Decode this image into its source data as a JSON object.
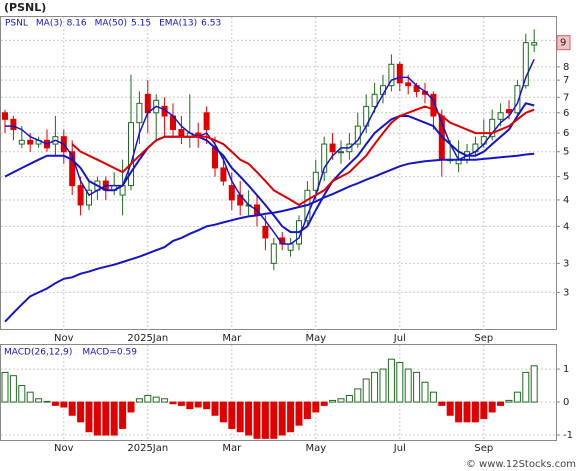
{
  "chart_data": [
    {
      "type": "candlestick",
      "title": "(PSNL)",
      "symbol": "PSNL",
      "last_price_label": "9",
      "log_scale": true,
      "categories": [
        null,
        null,
        null,
        null,
        null,
        null,
        null,
        "Nov",
        null,
        null,
        null,
        null,
        null,
        null,
        null,
        null,
        null,
        "2025Jan",
        null,
        null,
        null,
        null,
        null,
        null,
        null,
        null,
        null,
        "Mar",
        null,
        null,
        null,
        null,
        null,
        null,
        null,
        null,
        null,
        "May",
        null,
        null,
        null,
        null,
        null,
        null,
        null,
        null,
        null,
        "Jul",
        null,
        null,
        null,
        null,
        null,
        null,
        null,
        null,
        null,
        "Sep",
        null,
        null,
        null,
        null,
        null,
        null
      ],
      "open": [
        6.3,
        6.1,
        5.4,
        5.5,
        5.4,
        5.5,
        5.4,
        5.6,
        5.2,
        4.4,
        4.0,
        4.3,
        4.5,
        4.3,
        4.2,
        4.4,
        6.0,
        6.9,
        6.3,
        6.5,
        6.2,
        5.8,
        5.6,
        5.7,
        6.3,
        5.3,
        4.8,
        4.4,
        4.2,
        4.0,
        4.0,
        3.6,
        3.0,
        3.4,
        3.2,
        3.3,
        3.7,
        4.3,
        4.7,
        5.4,
        5.2,
        5.2,
        5.4,
        5.9,
        6.5,
        6.9,
        7.2,
        8.0,
        7.3,
        7.2,
        7.0,
        6.9,
        6.2,
        5.0,
        4.9,
        5.0,
        5.2,
        5.4,
        5.6,
        6.1,
        6.4,
        6.3,
        7.2,
        8.8
      ],
      "high": [
        6.4,
        6.2,
        5.9,
        5.7,
        5.6,
        5.8,
        6.2,
        5.8,
        5.5,
        4.6,
        4.5,
        4.6,
        4.6,
        4.7,
        5.0,
        7.6,
        7.0,
        7.4,
        6.9,
        6.8,
        6.6,
        6.2,
        6.9,
        6.0,
        6.5,
        5.6,
        5.1,
        4.7,
        4.5,
        4.3,
        4.2,
        3.8,
        3.4,
        3.5,
        3.4,
        3.8,
        4.5,
        5.0,
        5.6,
        5.7,
        5.5,
        5.7,
        6.3,
        6.9,
        7.3,
        7.6,
        8.4,
        8.1,
        7.6,
        7.3,
        7.3,
        7.0,
        6.4,
        5.5,
        5.5,
        5.4,
        5.6,
        6.1,
        6.4,
        6.6,
        6.7,
        7.4,
        9.3,
        9.5
      ],
      "low": [
        5.7,
        5.5,
        5.3,
        5.2,
        5.3,
        5.2,
        5.1,
        4.9,
        4.2,
        3.8,
        3.9,
        4.1,
        4.1,
        4.2,
        3.8,
        4.3,
        5.4,
        5.7,
        5.5,
        5.6,
        5.6,
        5.4,
        5.3,
        5.3,
        5.4,
        4.6,
        4.4,
        3.9,
        3.8,
        3.8,
        3.6,
        3.2,
        2.9,
        3.2,
        3.1,
        3.2,
        3.6,
        4.1,
        4.5,
        5.0,
        4.9,
        5.0,
        5.3,
        5.7,
        6.3,
        6.6,
        7.0,
        7.0,
        6.9,
        6.8,
        6.6,
        5.8,
        4.6,
        4.9,
        4.7,
        4.9,
        5.1,
        5.3,
        5.5,
        5.9,
        6.1,
        6.2,
        7.1,
        8.5
      ],
      "close": [
        6.1,
        5.8,
        5.5,
        5.4,
        5.5,
        5.3,
        5.6,
        5.2,
        4.4,
        4.0,
        4.3,
        4.5,
        4.3,
        4.4,
        4.4,
        6.0,
        6.6,
        6.3,
        6.7,
        6.2,
        5.8,
        5.6,
        5.7,
        5.6,
        5.8,
        4.8,
        4.5,
        4.1,
        4.0,
        4.0,
        3.8,
        3.4,
        3.3,
        3.3,
        3.3,
        3.7,
        4.3,
        4.7,
        5.4,
        5.2,
        5.2,
        5.4,
        5.9,
        6.5,
        6.9,
        7.2,
        8.0,
        7.3,
        7.2,
        7.0,
        6.9,
        6.2,
        5.0,
        5.0,
        5.0,
        5.2,
        5.4,
        5.6,
        6.1,
        6.3,
        6.3,
        7.2,
        8.9,
        8.9
      ],
      "up_color": "#1f6b1f",
      "down_color": "#e00000",
      "series": [
        {
          "name": "MA(3)",
          "last": 8.16,
          "color": "#1515c8",
          "width": 1.5,
          "values": [
            5.9,
            5.9,
            5.8,
            5.6,
            5.5,
            5.4,
            5.5,
            5.4,
            5.1,
            4.5,
            4.2,
            4.3,
            4.4,
            4.4,
            4.4,
            4.9,
            5.7,
            6.3,
            6.5,
            6.4,
            6.2,
            5.9,
            5.7,
            5.6,
            5.7,
            5.4,
            5.0,
            4.5,
            4.2,
            4.0,
            3.9,
            3.7,
            3.5,
            3.3,
            3.3,
            3.4,
            3.8,
            4.2,
            4.8,
            5.1,
            5.3,
            5.3,
            5.5,
            5.9,
            6.4,
            6.9,
            7.4,
            7.5,
            7.5,
            7.2,
            7.0,
            6.7,
            6.0,
            5.4,
            5.0,
            5.1,
            5.2,
            5.4,
            5.7,
            6.0,
            6.2,
            6.6,
            7.5,
            8.2
          ]
        },
        {
          "name": "MA(50)",
          "last": 5.15,
          "color": "#1515c8",
          "width": 2,
          "values": [
            2.25,
            2.35,
            2.45,
            2.55,
            2.6,
            2.65,
            2.72,
            2.78,
            2.8,
            2.85,
            2.88,
            2.92,
            2.95,
            2.98,
            3.02,
            3.06,
            3.1,
            3.15,
            3.2,
            3.25,
            3.35,
            3.4,
            3.47,
            3.53,
            3.6,
            3.63,
            3.67,
            3.71,
            3.75,
            3.78,
            3.8,
            3.83,
            3.85,
            3.88,
            3.92,
            3.96,
            4.0,
            4.07,
            4.15,
            4.22,
            4.3,
            4.38,
            4.45,
            4.53,
            4.6,
            4.68,
            4.76,
            4.84,
            4.9,
            4.93,
            4.96,
            4.98,
            5.0,
            5.0,
            5.0,
            5.0,
            5.0,
            5.02,
            5.04,
            5.06,
            5.08,
            5.1,
            5.13,
            5.15
          ]
        },
        {
          "name": "EMA(13)",
          "last": 6.53,
          "color": "#1515c8",
          "width": 2,
          "values": [
            4.6,
            4.7,
            4.8,
            4.9,
            5.0,
            5.1,
            5.1,
            5.1,
            5.0,
            4.8,
            4.5,
            4.4,
            4.3,
            4.3,
            4.4,
            4.7,
            5.0,
            5.3,
            5.5,
            5.6,
            5.6,
            5.6,
            5.6,
            5.6,
            5.5,
            5.3,
            5.1,
            4.8,
            4.6,
            4.4,
            4.2,
            4.0,
            3.8,
            3.6,
            3.5,
            3.5,
            3.6,
            3.9,
            4.2,
            4.5,
            4.7,
            4.9,
            5.1,
            5.4,
            5.7,
            5.9,
            6.1,
            6.2,
            6.2,
            6.1,
            6.0,
            5.9,
            5.6,
            5.4,
            5.2,
            5.1,
            5.1,
            5.2,
            5.4,
            5.6,
            5.8,
            6.2,
            6.6,
            6.53
          ]
        },
        {
          "color": "#e00000",
          "width": 2,
          "values": [
            null,
            null,
            null,
            null,
            null,
            null,
            null,
            null,
            5.4,
            5.2,
            5.1,
            5.0,
            4.9,
            4.8,
            4.7,
            4.9,
            5.1,
            5.3,
            5.5,
            5.6,
            5.6,
            5.6,
            5.6,
            5.6,
            5.6,
            5.5,
            5.4,
            5.2,
            5.0,
            4.9,
            4.7,
            4.5,
            4.3,
            4.2,
            4.1,
            4.0,
            4.1,
            4.2,
            4.3,
            4.5,
            4.6,
            4.7,
            4.9,
            5.1,
            5.4,
            5.7,
            6.0,
            6.2,
            6.3,
            6.4,
            6.5,
            6.4,
            6.2,
            6.0,
            5.9,
            5.8,
            5.7,
            5.7,
            5.7,
            5.8,
            5.9,
            6.1,
            6.3,
            6.4
          ]
        }
      ],
      "ylim": [
        2.16,
        10.1
      ],
      "yticks": [
        {
          "value": 9,
          "label": "9"
        },
        {
          "value": 7.9,
          "label": "8"
        },
        {
          "value": 7.4,
          "label": "7"
        },
        {
          "value": 6.8,
          "label": "7"
        },
        {
          "value": 6.3,
          "label": "6"
        },
        {
          "value": 5.7,
          "label": "6"
        },
        {
          "value": 5.2,
          "label": "5"
        },
        {
          "value": 4.6,
          "label": "5"
        },
        {
          "value": 4.1,
          "label": "4"
        },
        {
          "value": 3.6,
          "label": "4"
        },
        {
          "value": 3.0,
          "label": "3"
        },
        {
          "value": 2.6,
          "label": "3"
        }
      ],
      "grid": true
    },
    {
      "type": "bar",
      "title": "MACD(26,12,9)",
      "value_label": "MACD=0.59",
      "up_color": "#1f6b1f",
      "down_color": "#e00000",
      "values": [
        0.9,
        0.8,
        0.5,
        0.3,
        0.1,
        0.02,
        -0.1,
        -0.15,
        -0.4,
        -0.6,
        -0.9,
        -1.0,
        -1.0,
        -1.0,
        -0.8,
        -0.3,
        0.1,
        0.2,
        0.15,
        0.1,
        -0.05,
        -0.1,
        -0.2,
        -0.15,
        -0.2,
        -0.4,
        -0.6,
        -0.8,
        -0.9,
        -1.0,
        -1.1,
        -1.1,
        -1.1,
        -1.0,
        -0.9,
        -0.7,
        -0.5,
        -0.3,
        -0.1,
        0.05,
        0.1,
        0.2,
        0.4,
        0.7,
        0.9,
        1.0,
        1.3,
        1.2,
        1.0,
        0.9,
        0.6,
        0.3,
        -0.1,
        -0.4,
        -0.6,
        -0.6,
        -0.6,
        -0.5,
        -0.3,
        -0.1,
        0.05,
        0.3,
        0.9,
        1.1
      ],
      "ylim": [
        -1.15,
        1.73
      ],
      "yticks": [
        1,
        0,
        -1
      ],
      "grid": true
    }
  ],
  "watermark": "© www.12Stocks.com"
}
